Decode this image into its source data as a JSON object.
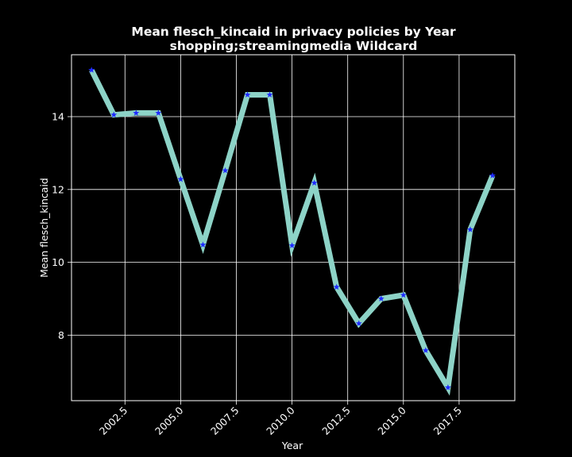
{
  "chart_data": {
    "type": "line",
    "title": "Mean flesch_kincaid in privacy policies by Year",
    "subtitle": "shopping;streamingmedia Wildcard",
    "xlabel": "Year",
    "ylabel": "Mean flesch_kincaid",
    "xlim": [
      2000.1,
      2020.0
    ],
    "ylim": [
      6.2,
      15.7
    ],
    "xticks": [
      2002.5,
      2005.0,
      2007.5,
      2010.0,
      2012.5,
      2015.0,
      2017.5
    ],
    "xtick_labels": [
      "2002.5",
      "2005.0",
      "2007.5",
      "2010.0",
      "2012.5",
      "2015.0",
      "2017.5"
    ],
    "yticks": [
      8,
      10,
      12,
      14
    ],
    "ytick_labels": [
      "8",
      "10",
      "12",
      "14"
    ],
    "grid": true,
    "colors": {
      "background": "#000000",
      "line": "#8dd3c7",
      "marker": "#1f2bff",
      "grid": "#ffffff",
      "text": "#ffffff"
    },
    "marker": "star",
    "series": [
      {
        "x": [
          2001,
          2002,
          2003,
          2004,
          2005,
          2006,
          2007,
          2008,
          2009,
          2010,
          2011,
          2012,
          2013,
          2014,
          2015,
          2016,
          2017,
          2018,
          2019
        ],
        "values": [
          15.28,
          14.05,
          14.1,
          14.1,
          12.28,
          10.48,
          12.52,
          14.6,
          14.6,
          10.46,
          12.18,
          9.32,
          8.32,
          9.0,
          9.1,
          7.58,
          6.56,
          10.9,
          12.38
        ]
      }
    ]
  }
}
